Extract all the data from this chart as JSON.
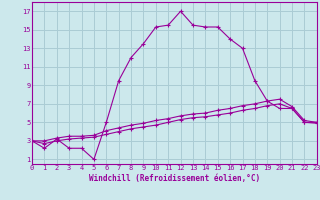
{
  "xlabel": "Windchill (Refroidissement éolien,°C)",
  "bg_color": "#cce8ec",
  "grid_color": "#aaccd4",
  "line_color": "#990099",
  "x_ticks": [
    0,
    1,
    2,
    3,
    4,
    5,
    6,
    7,
    8,
    9,
    10,
    11,
    12,
    13,
    14,
    15,
    16,
    17,
    18,
    19,
    20,
    21,
    22,
    23
  ],
  "y_ticks": [
    1,
    3,
    5,
    7,
    9,
    11,
    13,
    15,
    17
  ],
  "xlim": [
    0,
    23
  ],
  "ylim": [
    0.5,
    18.0
  ],
  "line1_x": [
    0,
    1,
    2,
    3,
    4,
    5,
    6,
    7,
    8,
    9,
    10,
    11,
    12,
    13,
    14,
    15,
    16,
    17,
    18,
    19,
    20,
    21,
    22,
    23
  ],
  "line1_y": [
    3.0,
    2.2,
    3.2,
    2.2,
    2.2,
    1.0,
    5.0,
    9.5,
    12.0,
    13.5,
    15.3,
    15.5,
    17.0,
    15.5,
    15.3,
    15.3,
    14.0,
    13.0,
    9.5,
    7.3,
    6.5,
    6.5,
    5.0,
    5.0
  ],
  "line2_x": [
    0,
    1,
    2,
    3,
    4,
    5,
    6,
    7,
    8,
    9,
    10,
    11,
    12,
    13,
    14,
    15,
    16,
    17,
    18,
    19,
    20,
    21,
    22,
    23
  ],
  "line2_y": [
    3.0,
    3.0,
    3.3,
    3.5,
    3.5,
    3.6,
    4.1,
    4.4,
    4.7,
    4.9,
    5.2,
    5.4,
    5.7,
    5.9,
    6.0,
    6.3,
    6.5,
    6.8,
    7.0,
    7.3,
    7.5,
    6.7,
    5.2,
    5.0
  ],
  "line3_x": [
    0,
    1,
    2,
    3,
    4,
    5,
    6,
    7,
    8,
    9,
    10,
    11,
    12,
    13,
    14,
    15,
    16,
    17,
    18,
    19,
    20,
    21,
    22,
    23
  ],
  "line3_y": [
    3.0,
    2.7,
    3.0,
    3.2,
    3.3,
    3.4,
    3.7,
    4.0,
    4.3,
    4.5,
    4.7,
    5.0,
    5.3,
    5.5,
    5.6,
    5.8,
    6.0,
    6.3,
    6.5,
    6.8,
    7.0,
    6.5,
    5.0,
    4.9
  ],
  "tick_fontsize": 5,
  "xlabel_fontsize": 5.5
}
